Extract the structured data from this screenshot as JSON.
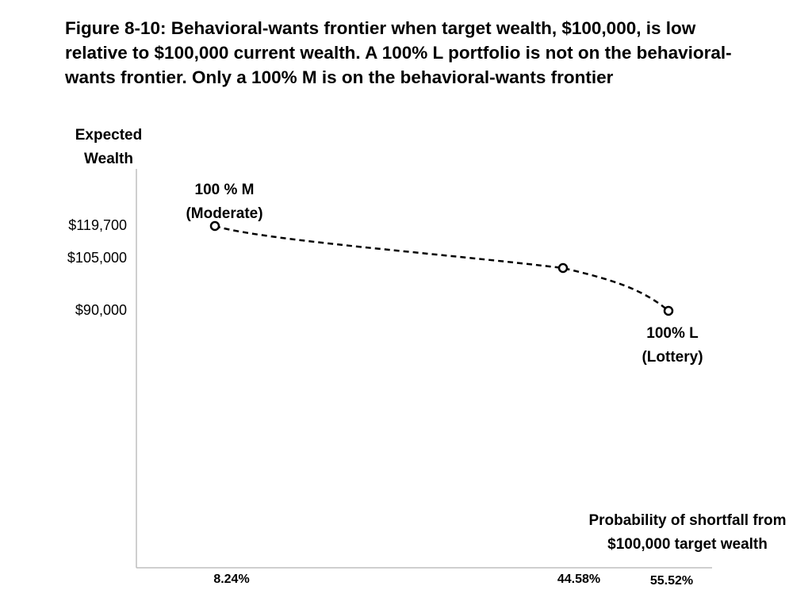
{
  "title": "Figure 8-10: Behavioral-wants frontier when target wealth, $100,000, is low relative to $100,000 current wealth. A 100% L portfolio is not on the behavioral-wants frontier. Only a 100% M is on the behavioral-wants frontier",
  "chart_data": {
    "type": "line",
    "title": "Figure 8-10: Behavioral-wants frontier when target wealth, $100,000, is low relative to $100,000 current wealth. A 100% L portfolio is not on the behavioral-wants frontier. Only a 100% M is on the behavioral-wants frontier",
    "ylabel": [
      "Expected",
      "Wealth"
    ],
    "xlabel": [
      "Probability of shortfall from",
      "$100,000 target wealth"
    ],
    "x_ticks": [
      "8.24%",
      "44.58%",
      "55.52%"
    ],
    "y_ticks": [
      "$119,700",
      "$105,000",
      "$90,000"
    ],
    "series": [
      {
        "points": [
          {
            "x": 8.24,
            "y": 119700
          },
          {
            "x": 44.58,
            "y": 105000
          },
          {
            "x": 55.52,
            "y": 90000
          }
        ],
        "style": "dashed",
        "marker": "open-circle"
      }
    ],
    "annotations": [
      {
        "lines": [
          "100 % M",
          "(Moderate)"
        ]
      },
      {
        "lines": [
          "100% L",
          "(Lottery)"
        ]
      }
    ],
    "grid": false
  },
  "colors": {
    "line": "#000000",
    "axis": "#bfbfbf",
    "background": "#ffffff"
  }
}
